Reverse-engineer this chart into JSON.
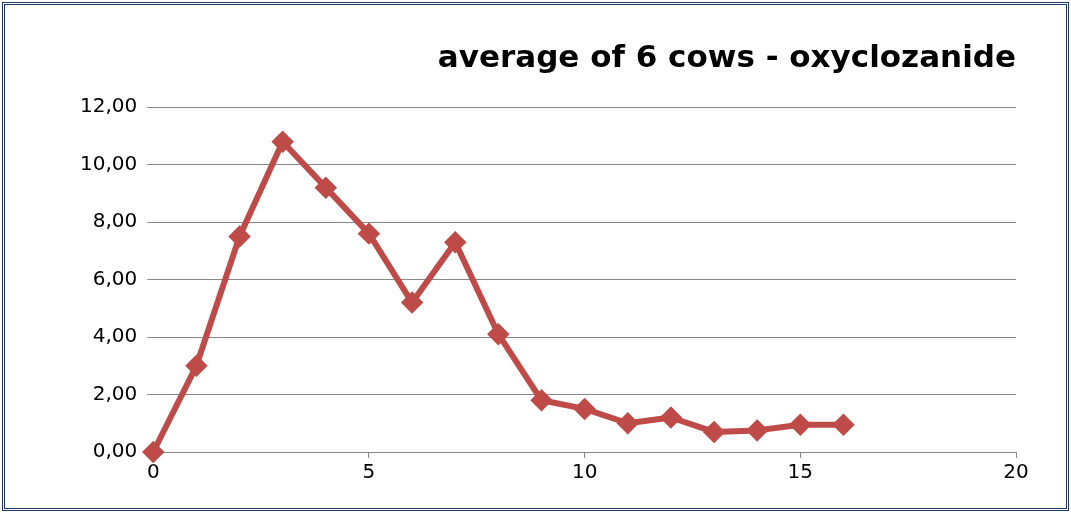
{
  "chart_data": {
    "type": "line",
    "title": "average of 6 cows - oxyclozanide",
    "x": [
      0,
      1,
      2,
      3,
      4,
      5,
      6,
      7,
      8,
      9,
      10,
      11,
      12,
      13,
      14,
      15,
      16
    ],
    "series": [
      {
        "color": "#be4b48",
        "values": [
          0,
          3.0,
          7.5,
          10.8,
          9.2,
          7.6,
          5.2,
          7.3,
          4.1,
          1.8,
          1.5,
          1.0,
          1.2,
          0.7,
          0.75,
          0.95,
          0.95
        ]
      }
    ],
    "xlim": [
      0,
      20
    ],
    "xticks": [
      0,
      5,
      10,
      15,
      20
    ],
    "ylim": [
      0,
      12
    ],
    "yticks": [
      {
        "value": 0,
        "label": "0,00"
      },
      {
        "value": 2,
        "label": "2,00"
      },
      {
        "value": 4,
        "label": "4,00"
      },
      {
        "value": 6,
        "label": "6,00"
      },
      {
        "value": 8,
        "label": "8,00"
      },
      {
        "value": 10,
        "label": "10,00"
      },
      {
        "value": 12,
        "label": "12,00"
      }
    ],
    "grid": "y",
    "legend": false,
    "marker": "diamond",
    "line_style": "solid"
  }
}
